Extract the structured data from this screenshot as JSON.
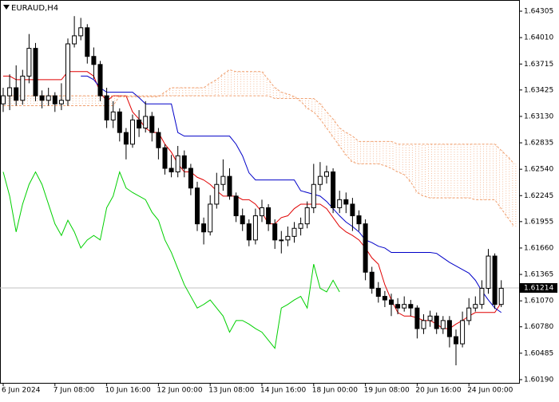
{
  "chart_data": {
    "type": "candlestick",
    "title": "EURAUD,H4",
    "categories": [
      "6 Jun 2024",
      null,
      null,
      null,
      null,
      null,
      null,
      null,
      "7 Jun 08:00",
      null,
      null,
      null,
      null,
      null,
      null,
      null,
      "10 Jun 16:00",
      null,
      null,
      null,
      null,
      null,
      null,
      null,
      "12 Jun 00:00",
      null,
      null,
      null,
      null,
      null,
      null,
      null,
      "13 Jun 08:00",
      null,
      null,
      null,
      null,
      null,
      null,
      null,
      "14 Jun 16:00",
      null,
      null,
      null,
      null,
      null,
      null,
      null,
      "18 Jun 00:00",
      null,
      null,
      null,
      null,
      null,
      null,
      null,
      "19 Jun 08:00",
      null,
      null,
      null,
      null,
      null,
      null,
      null,
      "20 Jun 16:00",
      null,
      null,
      null,
      null,
      null,
      null,
      null,
      "24 Jun 00:00",
      null,
      null,
      null,
      null,
      null,
      null,
      null
    ],
    "open": [
      1.6327,
      1.6336,
      1.6345,
      1.6331,
      1.6358,
      1.6389,
      1.6336,
      1.6331,
      1.6336,
      1.6327,
      1.6331,
      1.6394,
      1.6403,
      1.6412,
      1.638,
      1.6371,
      1.6336,
      1.6309,
      1.6318,
      1.6295,
      1.6282,
      1.6309,
      1.63,
      1.6313,
      1.6295,
      1.6278,
      1.6255,
      1.6251,
      1.6269,
      1.6255,
      1.6233,
      1.6193,
      1.6184,
      1.6215,
      1.6237,
      1.6246,
      1.6224,
      1.6202,
      1.6193,
      1.6175,
      1.6202,
      1.6211,
      1.6193,
      1.6175,
      1.6175,
      1.6179,
      1.6188,
      1.6193,
      1.6211,
      1.6237,
      1.6246,
      1.6251,
      1.6211,
      1.622,
      1.6215,
      1.6202,
      1.6193,
      1.6139,
      1.6121,
      1.6112,
      1.6108,
      1.6103,
      1.6099,
      1.6103,
      1.6099,
      1.6076,
      1.6085,
      1.609,
      1.6076,
      1.6085,
      1.6067,
      1.6059,
      1.6085,
      1.6099,
      1.6103,
      1.6121,
      1.6157,
      1.6103,
      null,
      null
    ],
    "high": [
      1.6345,
      1.636,
      1.637,
      1.6365,
      1.6405,
      1.6395,
      1.6342,
      1.6345,
      1.634,
      1.635,
      1.64,
      1.6425,
      1.6423,
      1.6416,
      1.639,
      1.6375,
      1.6345,
      1.633,
      1.6322,
      1.63,
      1.6315,
      1.632,
      1.633,
      1.6318,
      1.63,
      1.6282,
      1.627,
      1.628,
      1.6275,
      1.626,
      1.624,
      1.62,
      1.6225,
      1.625,
      1.6265,
      1.6255,
      1.6228,
      1.621,
      1.6198,
      1.621,
      1.622,
      1.6215,
      1.6198,
      1.6185,
      1.619,
      1.6195,
      1.62,
      1.6218,
      1.626,
      1.6262,
      1.6258,
      1.6255,
      1.623,
      1.6228,
      1.6222,
      1.6208,
      1.6198,
      1.6145,
      1.6128,
      1.6118,
      1.6115,
      1.611,
      1.6112,
      1.6108,
      1.6102,
      1.6092,
      1.6096,
      1.6094,
      1.609,
      1.609,
      1.6075,
      1.6095,
      1.611,
      1.6112,
      1.613,
      1.6165,
      1.616,
      1.613,
      null,
      null
    ],
    "low": [
      1.6318,
      1.632,
      1.6325,
      1.6326,
      1.635,
      1.633,
      1.6322,
      1.6325,
      1.6318,
      1.632,
      1.6325,
      1.639,
      1.6398,
      1.6372,
      1.6355,
      1.633,
      1.63,
      1.63,
      1.6285,
      1.6265,
      1.6278,
      1.629,
      1.6295,
      1.6285,
      1.6265,
      1.6248,
      1.6245,
      1.6245,
      1.6245,
      1.6225,
      1.6185,
      1.617,
      1.618,
      1.621,
      1.623,
      1.622,
      1.6195,
      1.6185,
      1.6168,
      1.617,
      1.6195,
      1.6185,
      1.6165,
      1.616,
      1.6168,
      1.6172,
      1.618,
      1.6188,
      1.6205,
      1.623,
      1.6238,
      1.6205,
      1.6205,
      1.6205,
      1.6185,
      1.6185,
      1.613,
      1.6115,
      1.6105,
      1.61,
      1.609,
      1.6092,
      1.6095,
      1.609,
      1.6065,
      1.607,
      1.6078,
      1.607,
      1.607,
      1.6055,
      1.6035,
      1.6055,
      1.608,
      1.6095,
      1.6098,
      1.6115,
      1.6098,
      1.61,
      null,
      null
    ],
    "close": [
      1.6336,
      1.6345,
      1.6331,
      1.6358,
      1.6389,
      1.6336,
      1.6331,
      1.6336,
      1.6327,
      1.6331,
      1.6394,
      1.6403,
      1.6412,
      1.638,
      1.6371,
      1.6336,
      1.6309,
      1.6318,
      1.6295,
      1.6282,
      1.6309,
      1.63,
      1.6313,
      1.6295,
      1.6278,
      1.6255,
      1.6251,
      1.6269,
      1.6255,
      1.6233,
      1.6193,
      1.6184,
      1.6215,
      1.6237,
      1.6246,
      1.6224,
      1.6202,
      1.6193,
      1.6175,
      1.6202,
      1.6211,
      1.6193,
      1.6175,
      1.6175,
      1.6179,
      1.6188,
      1.6193,
      1.6211,
      1.6237,
      1.6246,
      1.6251,
      1.6211,
      1.622,
      1.6215,
      1.6202,
      1.6193,
      1.6139,
      1.6121,
      1.6112,
      1.6108,
      1.6103,
      1.6099,
      1.6103,
      1.6099,
      1.6076,
      1.6085,
      1.609,
      1.6076,
      1.6085,
      1.6067,
      1.6059,
      1.6085,
      1.6099,
      1.6103,
      1.6121,
      1.6157,
      1.6103,
      1.6121,
      null,
      null
    ],
    "bull_color": "#ffffff",
    "bear_color": "#000000",
    "indicators": [
      {
        "color": "#e00000",
        "dashed": false,
        "values": [
          1.6358,
          1.6358,
          1.6354,
          1.6354,
          1.6354,
          1.6354,
          1.6354,
          1.6354,
          1.6354,
          1.6354,
          1.6363,
          1.6363,
          1.6363,
          1.6363,
          1.6358,
          1.634,
          1.633,
          1.6336,
          1.6336,
          1.6336,
          1.6318,
          1.631,
          1.63,
          1.6295,
          1.6295,
          1.6282,
          1.6273,
          1.626,
          1.6251,
          1.6251,
          1.6245,
          1.6242,
          1.6237,
          1.623,
          1.6224,
          1.6224,
          1.6224,
          1.622,
          1.622,
          1.6215,
          1.6206,
          1.6193,
          1.6193,
          1.62,
          1.6202,
          1.621,
          1.6215,
          1.6215,
          1.6215,
          1.6215,
          1.621,
          1.62,
          1.619,
          1.6184,
          1.618,
          1.6175,
          1.6166,
          1.6155,
          1.6148,
          1.6125,
          1.6108,
          1.6094,
          1.609,
          1.609,
          1.6088,
          1.6085,
          1.6085,
          1.6081,
          1.6076,
          1.6076,
          1.6081,
          1.6085,
          1.609,
          1.6094,
          1.6094,
          1.6094,
          1.6094,
          1.6105,
          null,
          null
        ]
      },
      {
        "color": "#0000c8",
        "dashed": false,
        "values": [
          null,
          null,
          null,
          null,
          null,
          null,
          null,
          null,
          null,
          null,
          null,
          null,
          1.6358,
          1.6358,
          1.6354,
          1.6345,
          1.634,
          1.634,
          1.634,
          1.634,
          1.634,
          1.6334,
          1.6327,
          1.6327,
          1.6327,
          1.6327,
          1.6327,
          1.6295,
          1.6291,
          1.6291,
          1.6291,
          1.6291,
          1.6291,
          1.6291,
          1.6291,
          1.6291,
          1.6282,
          1.6269,
          1.625,
          1.6242,
          1.6242,
          1.6242,
          1.6242,
          1.6242,
          1.6242,
          1.6242,
          1.623,
          1.6228,
          1.6226,
          1.6224,
          1.6218,
          1.621,
          1.6202,
          1.6195,
          1.619,
          1.6184,
          1.6175,
          1.6172,
          1.6168,
          1.6166,
          1.6161,
          1.6161,
          1.6161,
          1.6161,
          1.6161,
          1.6161,
          1.6161,
          1.616,
          1.6155,
          1.615,
          1.6146,
          1.6142,
          1.6138,
          1.613,
          1.6118,
          1.6108,
          1.6099,
          1.6094,
          null,
          null
        ]
      },
      {
        "color": "#00d000",
        "dashed": false,
        "values": [
          1.6251,
          1.6224,
          1.6184,
          1.6215,
          1.6237,
          1.6251,
          1.6237,
          1.6215,
          1.6193,
          1.618,
          1.6197,
          1.6184,
          1.6166,
          1.6175,
          1.618,
          1.6175,
          1.6211,
          1.6224,
          1.6251,
          1.6233,
          1.6228,
          1.6224,
          1.622,
          1.6206,
          1.6197,
          1.6175,
          1.6161,
          1.6143,
          1.6125,
          1.6112,
          1.6099,
          1.6103,
          1.6108,
          1.6099,
          1.609,
          1.6072,
          1.6085,
          1.6085,
          1.6081,
          1.6076,
          1.6072,
          1.6063,
          1.6054,
          1.6099,
          1.6103,
          1.6108,
          1.6112,
          1.6099,
          1.6148,
          1.6121,
          1.6117,
          1.613,
          1.6117,
          null,
          null,
          null,
          null,
          null,
          null,
          null,
          null,
          null,
          null,
          null,
          null,
          null,
          null,
          null,
          null,
          null,
          null,
          null,
          null,
          null,
          null,
          null,
          null,
          null,
          null,
          null
        ]
      },
      {
        "color": "#f0a070",
        "dashed": true,
        "values": [
          1.6336,
          1.6336,
          1.6336,
          1.6336,
          1.6336,
          1.6336,
          1.6336,
          1.6336,
          1.6336,
          1.6336,
          1.6336,
          1.6336,
          1.6336,
          1.6336,
          1.6336,
          1.6336,
          1.6336,
          1.6336,
          1.6335,
          1.6335,
          1.6335,
          1.6335,
          1.6335,
          1.6335,
          1.6335,
          1.634,
          1.6345,
          1.6345,
          1.6345,
          1.6345,
          1.6345,
          1.6345,
          1.635,
          1.6354,
          1.636,
          1.6365,
          1.6363,
          1.6363,
          1.6363,
          1.6363,
          1.6363,
          1.6354,
          1.6345,
          1.634,
          1.6338,
          1.6335,
          1.633,
          1.6322,
          1.6318,
          1.631,
          1.63,
          1.629,
          1.628,
          1.627,
          1.6262,
          1.626,
          1.626,
          1.626,
          1.626,
          1.6258,
          1.6255,
          1.6251,
          1.6248,
          1.624,
          1.6228,
          1.6224,
          1.6222,
          1.6222,
          1.6222,
          1.6222,
          1.6222,
          1.6222,
          1.6222,
          1.622,
          1.622,
          1.622,
          1.622,
          1.621,
          1.62,
          1.619
        ]
      },
      {
        "color": "#f0a070",
        "dashed": true,
        "values": [
          1.6325,
          1.6325,
          1.6325,
          1.6325,
          1.6325,
          1.6325,
          1.6325,
          1.6325,
          1.6325,
          1.6325,
          1.6325,
          1.6325,
          1.6325,
          1.6325,
          1.6325,
          1.6325,
          1.6325,
          1.6325,
          1.6336,
          1.6336,
          1.6336,
          1.6336,
          1.6336,
          1.6336,
          1.6336,
          1.6336,
          1.6336,
          1.6336,
          1.6336,
          1.6336,
          1.6336,
          1.6336,
          1.6336,
          1.6336,
          1.6336,
          1.6336,
          1.6336,
          1.6336,
          1.6336,
          1.6336,
          1.6336,
          1.6336,
          1.6333,
          1.6333,
          1.6333,
          1.6333,
          1.6333,
          1.6333,
          1.6333,
          1.6327,
          1.6318,
          1.631,
          1.63,
          1.6295,
          1.6291,
          1.6285,
          1.6285,
          1.6285,
          1.6285,
          1.6285,
          1.6285,
          1.6282,
          1.6282,
          1.6282,
          1.6282,
          1.6282,
          1.6282,
          1.6282,
          1.6282,
          1.6282,
          1.6282,
          1.6282,
          1.6282,
          1.6282,
          1.6282,
          1.6282,
          1.6282,
          1.6275,
          1.6268,
          1.626
        ]
      }
    ],
    "cloud": true,
    "last_price": 1.61214,
    "ylim": [
      1.60154,
      1.6443
    ],
    "yticks": [
      1.64305,
      {
        "value": 1.6401,
        "label": "1.64010"
      },
      1.63715,
      1.63425,
      {
        "value": 1.6313,
        "label": "1.63130"
      },
      1.62835,
      {
        "value": 1.6254,
        "label": "1.62540"
      },
      1.62245,
      1.61955,
      {
        "value": 1.6166,
        "label": "1.61660"
      },
      1.61365,
      {
        "value": 1.6107,
        "label": "1.61070"
      },
      {
        "value": 1.6078,
        "label": "1.60780"
      },
      1.60485,
      {
        "value": 1.6019,
        "label": "1.60190"
      }
    ]
  }
}
